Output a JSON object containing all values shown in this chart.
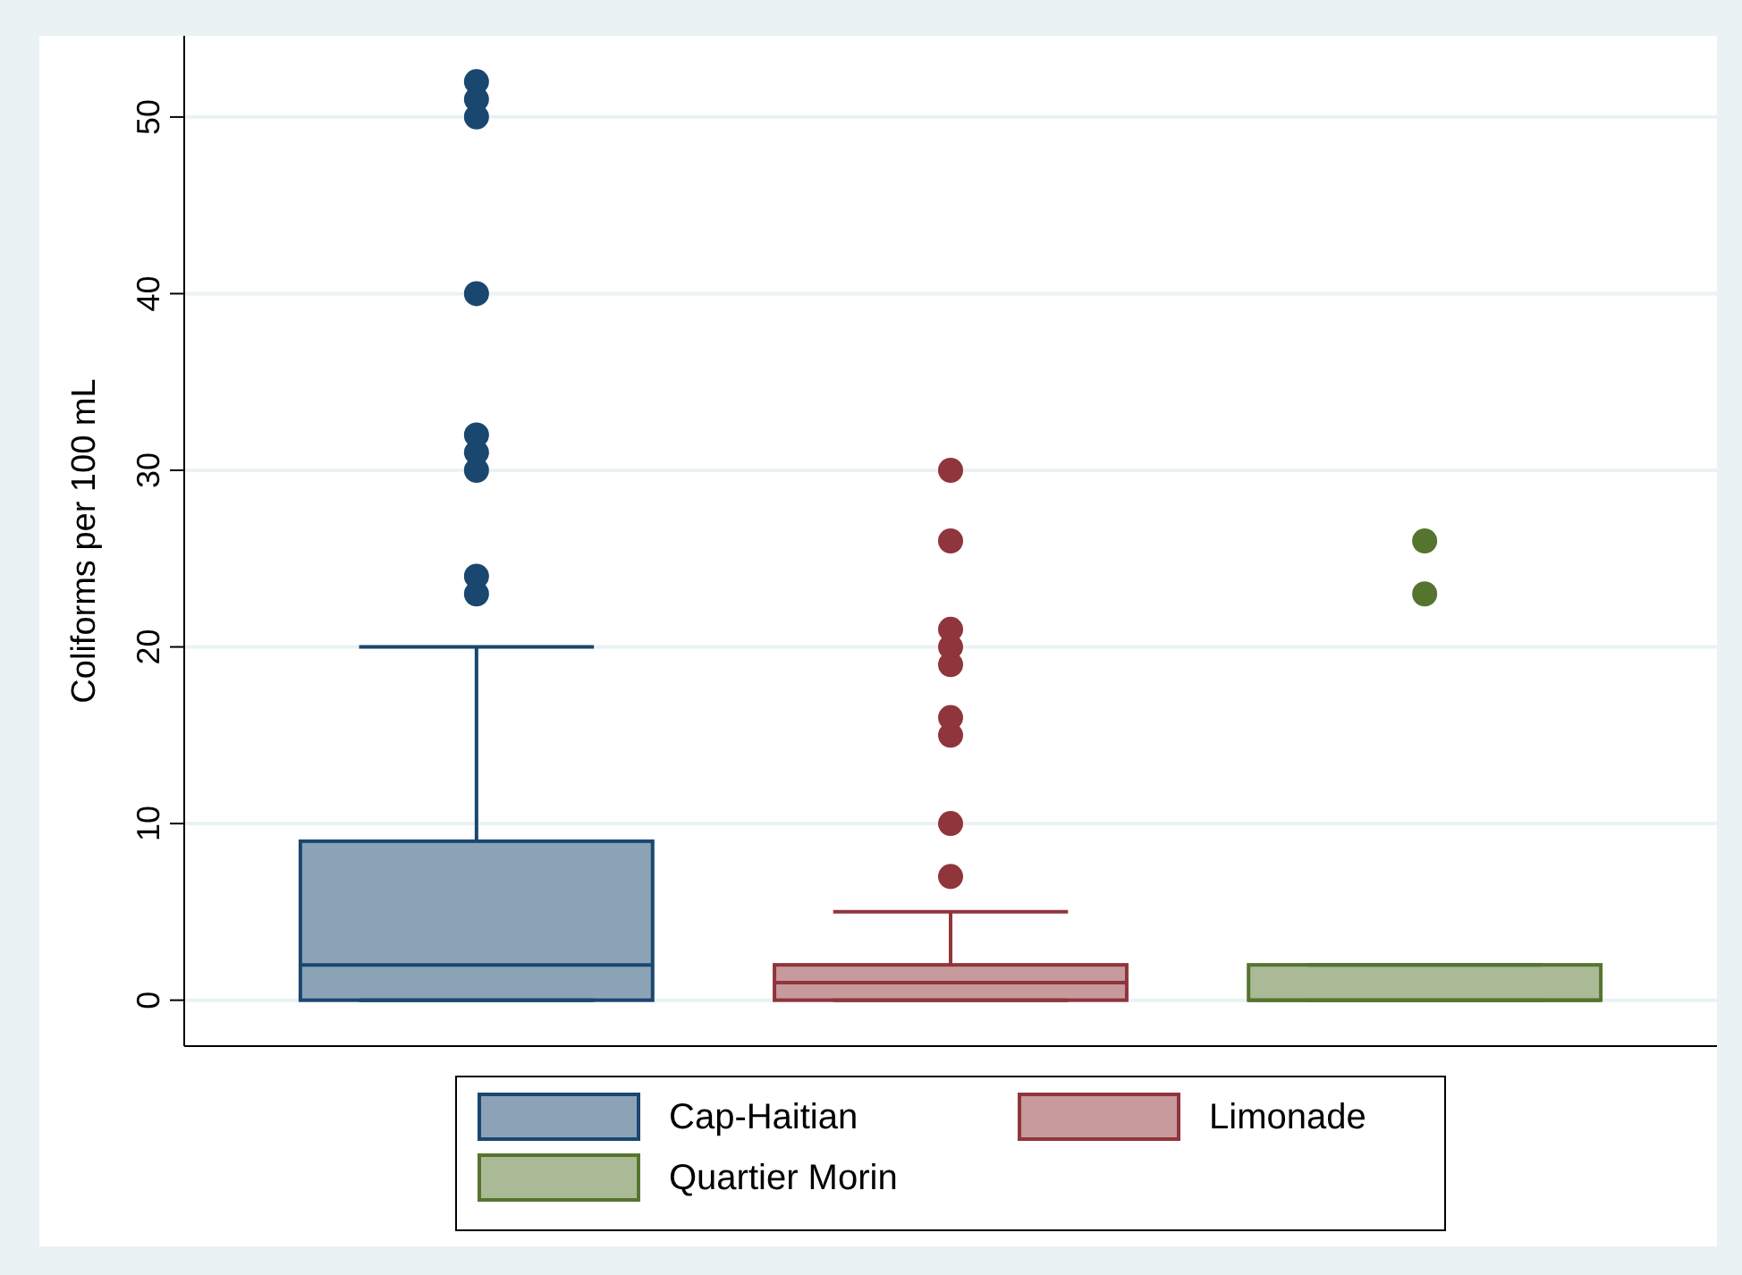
{
  "chart_data": {
    "type": "box",
    "ylabel": "Coliforms per 100 mL",
    "categories": [
      null
    ],
    "series": [
      {
        "name": "Cap-Haitian",
        "color": "#1a476f",
        "boxes": [
          {
            "low": 0,
            "q1": 0,
            "median": 2,
            "q3": 9,
            "high": 20,
            "outliers": [
              23,
              24,
              30,
              31,
              32,
              40,
              50,
              51,
              52
            ]
          }
        ]
      },
      {
        "name": "Limonade",
        "color": "#90353b",
        "boxes": [
          {
            "low": 0,
            "q1": 0,
            "median": 1,
            "q3": 2,
            "high": 5,
            "outliers": [
              7,
              10,
              15,
              16,
              19,
              20,
              21,
              26,
              30
            ]
          }
        ]
      },
      {
        "name": "Quartier Morin",
        "color": "#55752f",
        "boxes": [
          {
            "low": 0,
            "q1": 0,
            "median": 0,
            "q3": 2,
            "high": 2,
            "outliers": [
              23,
              26
            ]
          }
        ]
      }
    ],
    "ylim": [
      -2.6,
      54.6
    ],
    "yticks": [
      0,
      10,
      20,
      30,
      40,
      50
    ],
    "grid": "y",
    "legend": "bottom",
    "marker": "circle"
  }
}
